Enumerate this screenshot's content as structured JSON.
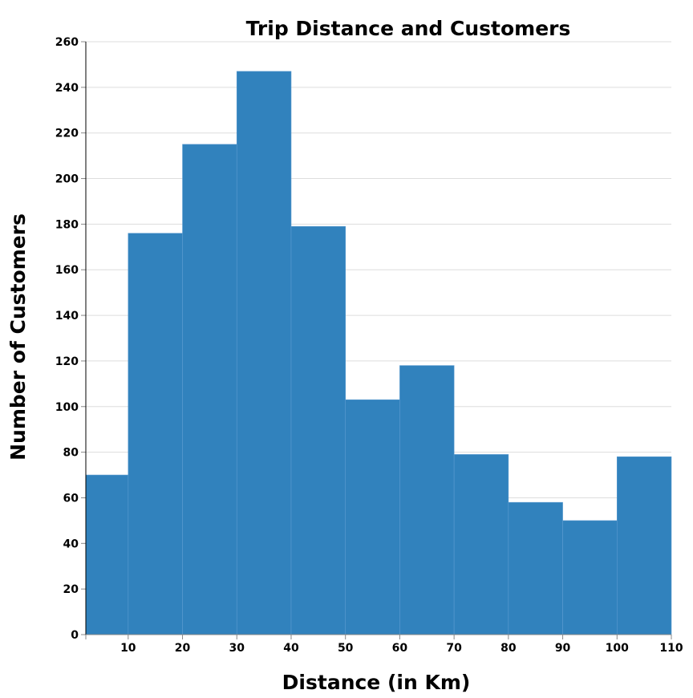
{
  "chart_data": {
    "type": "bar",
    "title": "Trip Distance and Customers",
    "xlabel": "Distance (in Km)",
    "ylabel": "Number of Customers",
    "bins": [
      [
        2.2,
        10
      ],
      [
        10,
        20
      ],
      [
        20,
        30
      ],
      [
        30,
        40
      ],
      [
        40,
        50
      ],
      [
        50,
        60
      ],
      [
        60,
        70
      ],
      [
        70,
        80
      ],
      [
        80,
        90
      ],
      [
        90,
        100
      ],
      [
        100,
        110
      ]
    ],
    "values": [
      70,
      176,
      215,
      247,
      179,
      103,
      118,
      79,
      58,
      50,
      78
    ],
    "xlim": [
      2.2,
      110
    ],
    "ylim": [
      0,
      260
    ],
    "xticks": [
      10,
      20,
      30,
      40,
      50,
      60,
      70,
      80,
      90,
      100,
      110
    ],
    "yticks": [
      0,
      20,
      40,
      60,
      80,
      100,
      120,
      140,
      160,
      180,
      200,
      220,
      240,
      260
    ],
    "grid": "horizontal",
    "bar_color": "#3182bd"
  }
}
